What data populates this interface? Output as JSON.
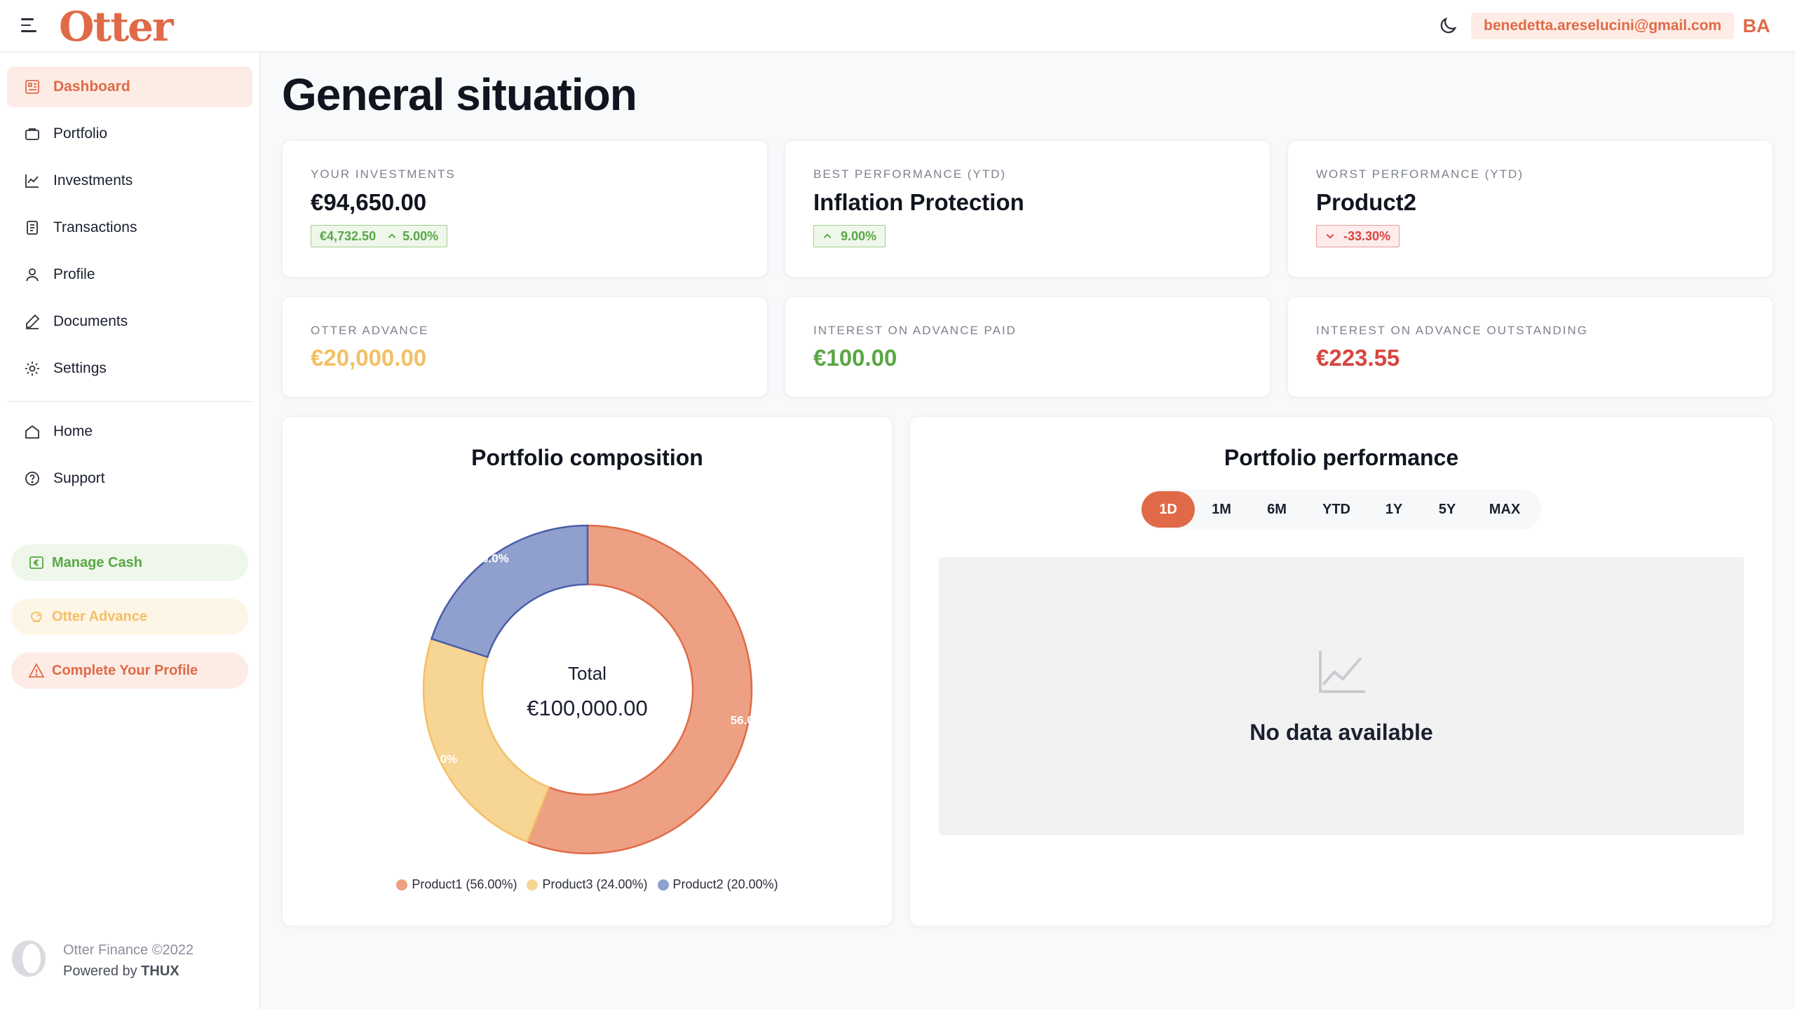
{
  "header": {
    "logo_text": "Otter",
    "email": "benedetta.areselucini@gmail.com",
    "avatar_initials": "BA"
  },
  "sidebar": {
    "items": [
      {
        "label": "Dashboard",
        "icon": "dashboard-icon",
        "active": true
      },
      {
        "label": "Portfolio",
        "icon": "briefcase-icon"
      },
      {
        "label": "Investments",
        "icon": "line-chart-icon"
      },
      {
        "label": "Transactions",
        "icon": "document-list-icon"
      },
      {
        "label": "Profile",
        "icon": "user-icon"
      },
      {
        "label": "Documents",
        "icon": "pen-icon"
      },
      {
        "label": "Settings",
        "icon": "gear-icon"
      },
      {
        "label": "Home",
        "icon": "home-icon"
      },
      {
        "label": "Support",
        "icon": "help-circle-icon"
      }
    ],
    "actions": [
      {
        "label": "Manage Cash",
        "icon": "euro-icon",
        "color": "#5aa745",
        "bg": "#eef7ea"
      },
      {
        "label": "Otter Advance",
        "icon": "piggy-bank-icon",
        "color": "#f3c065",
        "bg": "#fdf5e6"
      },
      {
        "label": "Complete Your Profile",
        "icon": "warning-icon",
        "color": "#e06a47",
        "bg": "#fdece6"
      }
    ],
    "footer": {
      "copyright": "Otter Finance ©2022",
      "powered_prefix": "Powered by ",
      "powered_by": "THUX"
    }
  },
  "main": {
    "title": "General situation",
    "kpis": [
      {
        "label": "YOUR INVESTMENTS",
        "value": "€94,650.00",
        "badge": "€4,732.50",
        "badge2": "5.00%",
        "trend": "up"
      },
      {
        "label": "BEST PERFORMANCE (YTD)",
        "value": "Inflation Protection",
        "badge": "9.00%",
        "trend": "up"
      },
      {
        "label": "WORST PERFORMANCE (YTD)",
        "value": "Product2",
        "badge": "-33.30%",
        "trend": "down"
      },
      {
        "label": "OTTER ADVANCE",
        "value": "€20,000.00",
        "color": "#f3c065"
      },
      {
        "label": "INTEREST ON ADVANCE PAID",
        "value": "€100.00",
        "color": "#5aa745"
      },
      {
        "label": "INTEREST ON ADVANCE OUTSTANDING",
        "value": "€223.55",
        "color": "#d6463f"
      }
    ],
    "composition": {
      "title": "Portfolio composition",
      "center_label": "Total",
      "center_value": "€100,000.00"
    },
    "performance": {
      "title": "Portfolio performance",
      "periods": [
        "1D",
        "1M",
        "6M",
        "YTD",
        "1Y",
        "5Y",
        "MAX"
      ],
      "active_period": "1D",
      "empty_text": "No data available"
    }
  },
  "chart_data": {
    "type": "pie",
    "title": "Portfolio composition",
    "slices": [
      {
        "name": "Product1",
        "value": 56.0,
        "label": "56.0%",
        "legend": "Product1 (56.00%)",
        "color": "#eda083",
        "stroke": "#e06a47"
      },
      {
        "name": "Product3",
        "value": 24.0,
        "label": "24.0%",
        "legend": "Product3 (24.00%)",
        "color": "#f7d594",
        "stroke": "#f3c065"
      },
      {
        "name": "Product2",
        "value": 20.0,
        "label": "20.0%",
        "legend": "Product2 (20.00%)",
        "color": "#8fa0cf",
        "stroke": "#4a5ea8"
      }
    ],
    "legend_placement": "bottom"
  }
}
